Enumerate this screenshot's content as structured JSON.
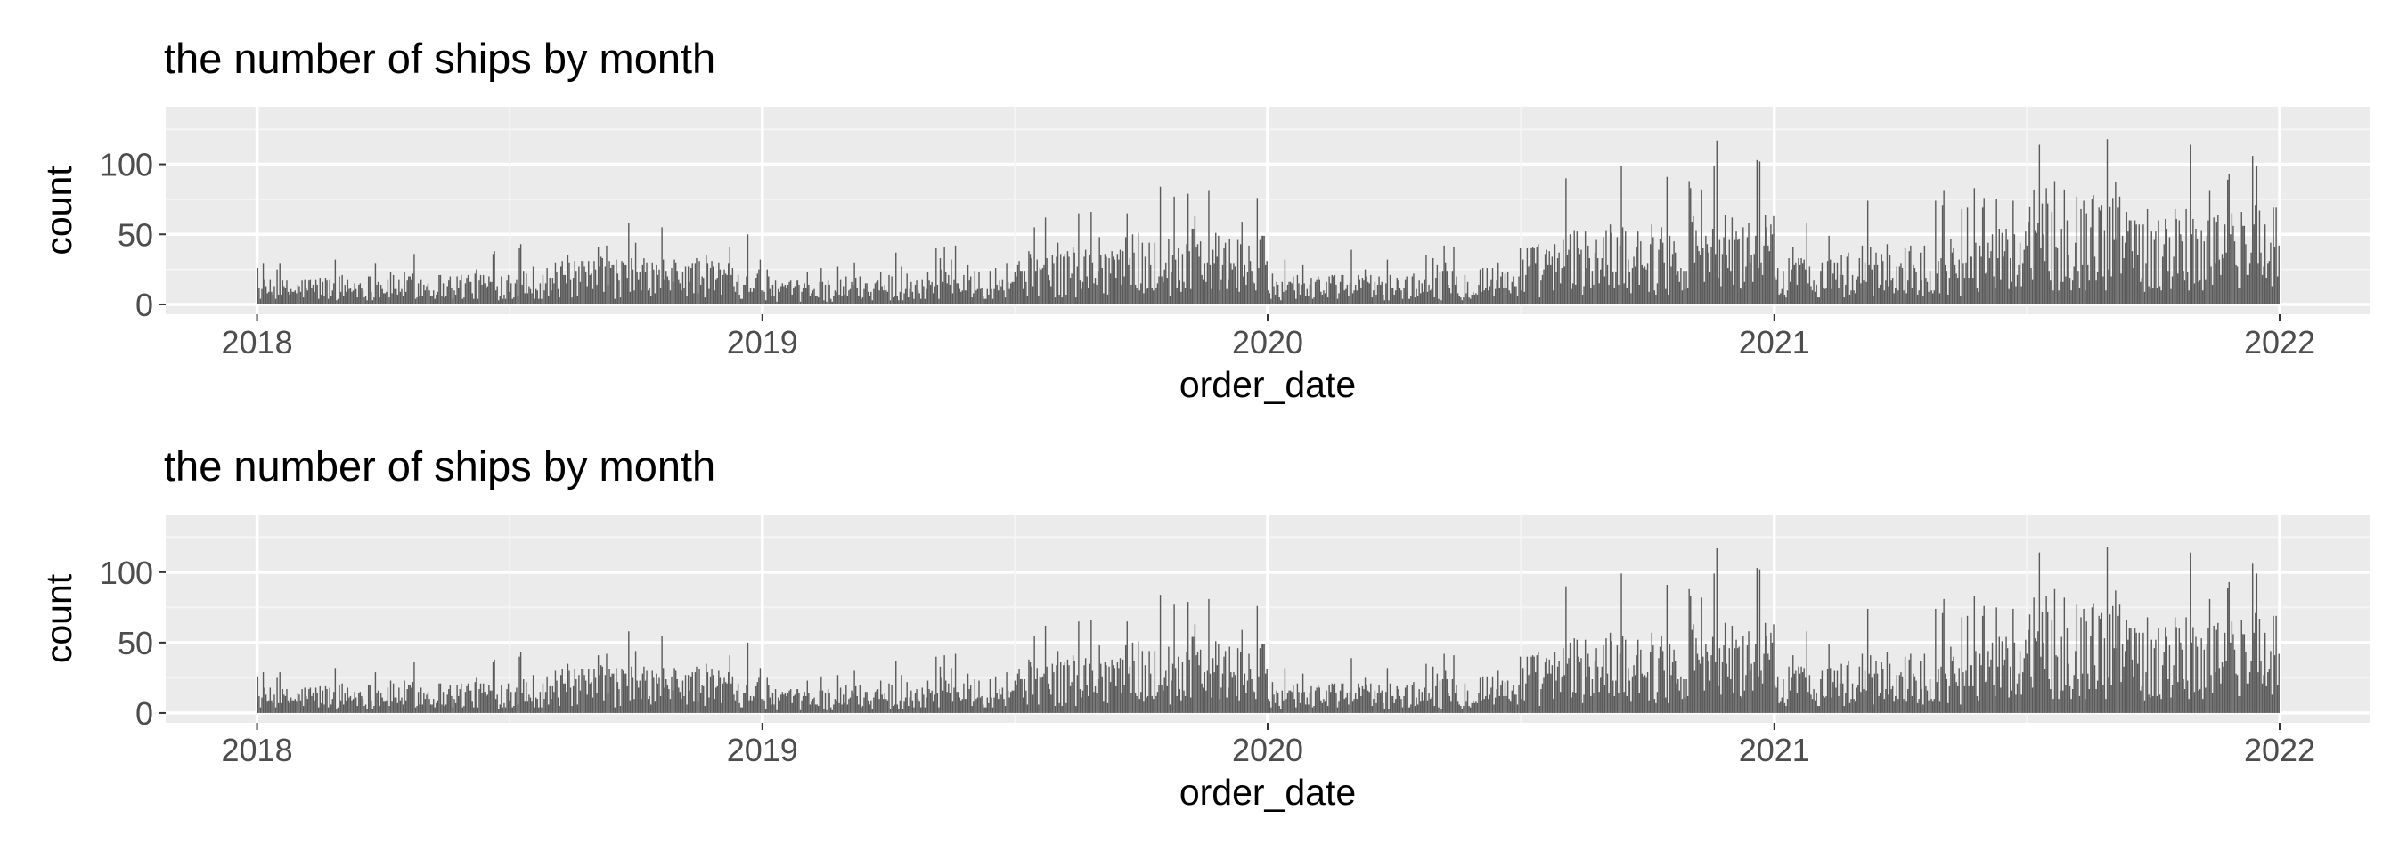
{
  "colors": {
    "panel_bg": "#EBEBEB",
    "grid_major": "#FFFFFF",
    "grid_minor": "#F5F5F5",
    "bar": "#595959",
    "tick_label": "#4D4D4D",
    "axis_title": "#000000"
  },
  "chart_data": [
    {
      "type": "bar",
      "title": "the number of ships by month",
      "xlabel": "order_date",
      "ylabel": "count",
      "x_ticks": [
        "2018",
        "2019",
        "2020",
        "2021",
        "2022"
      ],
      "y_ticks": [
        0,
        50,
        100
      ],
      "xlim": [
        "2017-10-27",
        "2022-03-07"
      ],
      "ylim": [
        -7,
        141
      ],
      "grid": true,
      "legend": "none",
      "series": [
        {
          "x_start": "2018-01-01",
          "x_end": "2021-12-31",
          "bin": "1 day",
          "monthly_typical_count": [
            14,
            16,
            17,
            18,
            18,
            19,
            22,
            24,
            27,
            26,
            27,
            25,
            13,
            14,
            16,
            18,
            22,
            24,
            30,
            34,
            40,
            38,
            42,
            38,
            18,
            17,
            17,
            17,
            19,
            24,
            34,
            42,
            48,
            45,
            52,
            50,
            28,
            29,
            33,
            34,
            37,
            42,
            58,
            62,
            60,
            56,
            54,
            55
          ]
        }
      ]
    },
    {
      "type": "bar",
      "title": "the number of ships by month",
      "xlabel": "order_date",
      "ylabel": "count",
      "x_ticks": [
        "2018",
        "2019",
        "2020",
        "2021",
        "2022"
      ],
      "y_ticks": [
        0,
        50,
        100
      ],
      "xlim": [
        "2017-10-27",
        "2022-03-07"
      ],
      "ylim": [
        -7,
        141
      ],
      "grid": true,
      "legend": "none",
      "series": [
        {
          "x_start": "2018-01-01",
          "x_end": "2021-12-31",
          "bin": "1 day",
          "monthly_typical_count": [
            14,
            16,
            17,
            18,
            18,
            19,
            22,
            24,
            27,
            26,
            27,
            25,
            13,
            14,
            16,
            18,
            22,
            24,
            30,
            34,
            40,
            38,
            42,
            38,
            18,
            17,
            17,
            17,
            19,
            24,
            34,
            42,
            48,
            45,
            52,
            50,
            28,
            29,
            33,
            34,
            37,
            42,
            58,
            62,
            60,
            56,
            54,
            55
          ]
        }
      ]
    }
  ]
}
